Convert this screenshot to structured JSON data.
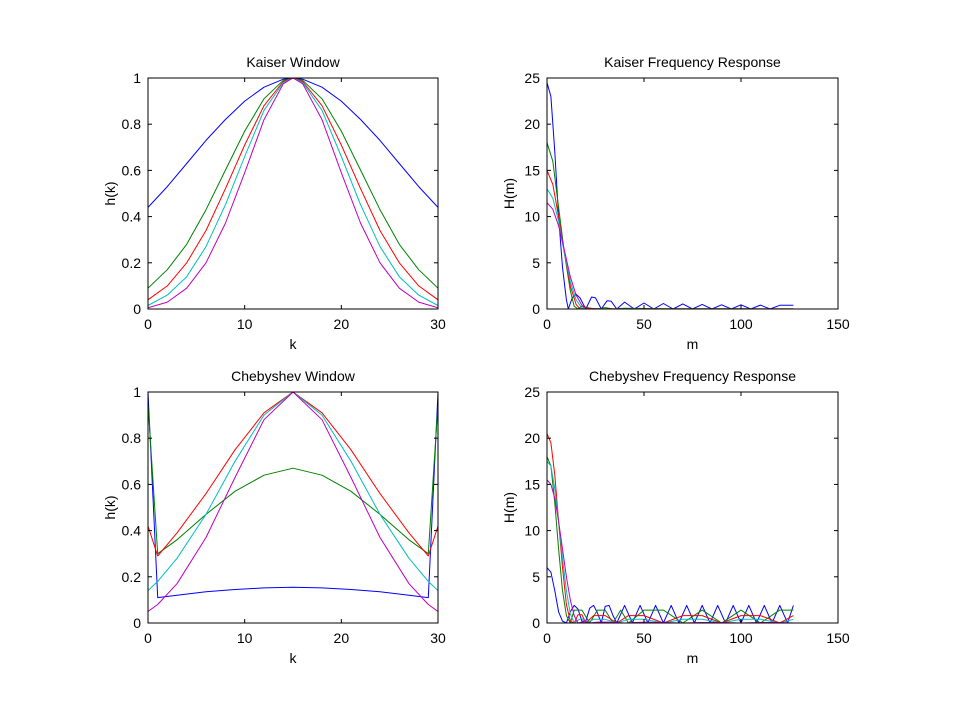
{
  "chart_data": [
    {
      "type": "line",
      "title": "Kaiser Window",
      "xlabel": "k",
      "ylabel": "h(k)",
      "xlim": [
        0,
        30
      ],
      "ylim": [
        0,
        1
      ],
      "xticks": [
        0,
        10,
        20,
        30
      ],
      "yticks": [
        0,
        0.2,
        0.4,
        0.6,
        0.8,
        1
      ],
      "grid": false,
      "legend": null,
      "series": [
        {
          "color": "#0000ff",
          "x": [
            0,
            2,
            4,
            6,
            8,
            10,
            12,
            14,
            15,
            16,
            18,
            20,
            22,
            24,
            26,
            28,
            30
          ],
          "y": [
            0.44,
            0.53,
            0.63,
            0.73,
            0.82,
            0.9,
            0.96,
            0.995,
            1,
            0.995,
            0.96,
            0.9,
            0.82,
            0.73,
            0.63,
            0.53,
            0.44
          ]
        },
        {
          "color": "#008000",
          "x": [
            0,
            2,
            4,
            6,
            8,
            10,
            12,
            14,
            15,
            16,
            18,
            20,
            22,
            24,
            26,
            28,
            30
          ],
          "y": [
            0.09,
            0.17,
            0.28,
            0.43,
            0.6,
            0.77,
            0.91,
            0.99,
            1,
            0.99,
            0.91,
            0.77,
            0.6,
            0.43,
            0.28,
            0.17,
            0.09
          ]
        },
        {
          "color": "#ff0000",
          "x": [
            0,
            2,
            4,
            6,
            8,
            10,
            12,
            14,
            15,
            16,
            18,
            20,
            22,
            24,
            26,
            28,
            30
          ],
          "y": [
            0.04,
            0.1,
            0.2,
            0.34,
            0.52,
            0.71,
            0.88,
            0.985,
            1,
            0.985,
            0.88,
            0.71,
            0.52,
            0.34,
            0.2,
            0.1,
            0.04
          ]
        },
        {
          "color": "#00bfbf",
          "x": [
            0,
            2,
            4,
            6,
            8,
            10,
            12,
            14,
            15,
            16,
            18,
            20,
            22,
            24,
            26,
            28,
            30
          ],
          "y": [
            0.015,
            0.06,
            0.14,
            0.27,
            0.45,
            0.66,
            0.86,
            0.98,
            1,
            0.98,
            0.86,
            0.66,
            0.45,
            0.27,
            0.14,
            0.06,
            0.015
          ]
        },
        {
          "color": "#bf00bf",
          "x": [
            0,
            2,
            4,
            6,
            8,
            10,
            12,
            14,
            15,
            16,
            18,
            20,
            22,
            24,
            26,
            28,
            30
          ],
          "y": [
            0.005,
            0.03,
            0.09,
            0.2,
            0.37,
            0.59,
            0.82,
            0.975,
            1,
            0.975,
            0.82,
            0.59,
            0.37,
            0.2,
            0.09,
            0.03,
            0.005
          ]
        }
      ]
    },
    {
      "type": "line",
      "title": "Kaiser Frequency Response",
      "xlabel": "m",
      "ylabel": "H(m)",
      "xlim": [
        0,
        150
      ],
      "ylim": [
        0,
        25
      ],
      "xticks": [
        0,
        50,
        100,
        150
      ],
      "yticks": [
        0,
        5,
        10,
        15,
        20,
        25
      ],
      "grid": false,
      "legend": null,
      "series": [
        {
          "color": "#0000ff",
          "x": [
            0,
            2,
            4,
            6,
            8,
            10,
            11,
            13,
            15,
            17,
            20,
            23,
            25,
            28,
            31,
            33,
            36,
            40,
            45,
            50,
            55,
            60,
            65,
            70,
            75,
            80,
            85,
            90,
            95,
            100,
            105,
            110,
            115,
            120,
            127
          ],
          "y": [
            24.5,
            23,
            17,
            10,
            4.5,
            1,
            0,
            1.2,
            1.6,
            1.2,
            0,
            1.3,
            1.2,
            0,
            0.9,
            0.85,
            0,
            0.75,
            0,
            0.65,
            0,
            0.6,
            0,
            0.55,
            0,
            0.5,
            0,
            0.45,
            0,
            0.45,
            0,
            0.42,
            0,
            0.4,
            0.4
          ]
        },
        {
          "color": "#008000",
          "x": [
            0,
            3,
            6,
            9,
            12,
            14,
            16,
            18,
            22,
            26,
            30,
            34,
            40,
            60,
            80,
            100,
            127
          ],
          "y": [
            18,
            16,
            11,
            6,
            2,
            0.3,
            0,
            0.3,
            0.1,
            0,
            0.15,
            0,
            0.08,
            0.03,
            0.02,
            0.02,
            0.01
          ]
        },
        {
          "color": "#ff0000",
          "x": [
            0,
            3,
            6,
            9,
            12,
            15,
            17,
            19,
            23,
            28,
            34,
            40,
            60,
            80,
            100,
            127
          ],
          "y": [
            15,
            13.5,
            10,
            6,
            2.5,
            0.5,
            0,
            0.15,
            0.05,
            0,
            0.03,
            0.01,
            0.01,
            0.01,
            0.01,
            0.01
          ]
        },
        {
          "color": "#00bfbf",
          "x": [
            0,
            3,
            6,
            9,
            12,
            15,
            18,
            20,
            25,
            30,
            40,
            60,
            80,
            100,
            127
          ],
          "y": [
            13,
            12,
            9.5,
            6,
            3,
            1,
            0.1,
            0,
            0.03,
            0,
            0.01,
            0,
            0,
            0,
            0
          ]
        },
        {
          "color": "#bf00bf",
          "x": [
            0,
            3,
            6,
            9,
            12,
            15,
            18,
            21,
            24,
            30,
            40,
            60,
            80,
            100,
            127
          ],
          "y": [
            11.5,
            10.8,
            9,
            6.3,
            3.5,
            1.5,
            0.4,
            0,
            0.02,
            0,
            0,
            0,
            0,
            0,
            0
          ]
        }
      ]
    },
    {
      "type": "line",
      "title": "Chebyshev Window",
      "xlabel": "k",
      "ylabel": "h(k)",
      "xlim": [
        0,
        30
      ],
      "ylim": [
        0,
        1
      ],
      "xticks": [
        0,
        10,
        20,
        30
      ],
      "yticks": [
        0,
        0.2,
        0.4,
        0.6,
        0.8,
        1
      ],
      "grid": false,
      "legend": null,
      "series": [
        {
          "color": "#0000ff",
          "x": [
            0,
            1,
            3,
            6,
            9,
            12,
            15,
            18,
            21,
            24,
            27,
            29,
            30
          ],
          "y": [
            1,
            0.11,
            0.12,
            0.135,
            0.145,
            0.152,
            0.155,
            0.152,
            0.145,
            0.135,
            0.12,
            0.11,
            1
          ]
        },
        {
          "color": "#008000",
          "x": [
            0,
            1,
            3,
            6,
            9,
            12,
            15,
            18,
            21,
            24,
            27,
            29,
            30
          ],
          "y": [
            0.95,
            0.3,
            0.36,
            0.47,
            0.57,
            0.64,
            0.67,
            0.64,
            0.57,
            0.47,
            0.36,
            0.3,
            0.95
          ]
        },
        {
          "color": "#ff0000",
          "x": [
            0,
            1,
            3,
            6,
            9,
            12,
            15,
            18,
            21,
            24,
            27,
            29,
            30
          ],
          "y": [
            0.42,
            0.29,
            0.39,
            0.56,
            0.75,
            0.91,
            1,
            0.91,
            0.75,
            0.56,
            0.39,
            0.29,
            0.42
          ]
        },
        {
          "color": "#00bfbf",
          "x": [
            0,
            1,
            3,
            6,
            9,
            12,
            15,
            18,
            21,
            24,
            27,
            29,
            30
          ],
          "y": [
            0.14,
            0.18,
            0.28,
            0.47,
            0.7,
            0.9,
            1,
            0.9,
            0.7,
            0.47,
            0.28,
            0.18,
            0.14
          ]
        },
        {
          "color": "#bf00bf",
          "x": [
            0,
            1,
            3,
            6,
            9,
            12,
            15,
            18,
            21,
            24,
            27,
            29,
            30
          ],
          "y": [
            0.05,
            0.08,
            0.17,
            0.37,
            0.63,
            0.88,
            1,
            0.88,
            0.63,
            0.37,
            0.17,
            0.08,
            0.05
          ]
        }
      ]
    },
    {
      "type": "line",
      "title": "Chebyshev Frequency Response",
      "xlabel": "m",
      "ylabel": "H(m)",
      "xlim": [
        0,
        150
      ],
      "ylim": [
        0,
        25
      ],
      "xticks": [
        0,
        50,
        100,
        150
      ],
      "yticks": [
        0,
        5,
        10,
        15,
        20,
        25
      ],
      "grid": false,
      "legend": null,
      "series": [
        {
          "color": "#0000ff",
          "x": [
            0,
            2,
            4,
            6,
            8,
            10,
            12,
            14,
            16,
            18,
            20,
            22,
            24,
            26,
            28,
            30,
            32,
            34,
            36,
            40,
            44,
            48,
            52,
            56,
            60,
            64,
            68,
            72,
            76,
            80,
            84,
            88,
            92,
            96,
            100,
            104,
            108,
            112,
            116,
            120,
            124,
            127
          ],
          "y": [
            6,
            5.5,
            3.5,
            1.2,
            0.2,
            0,
            1.2,
            1.9,
            1.5,
            0.2,
            0.2,
            1.6,
            1.9,
            1.1,
            0,
            1.8,
            1.9,
            0.8,
            0,
            1.9,
            0,
            1.9,
            0,
            1.9,
            0,
            1.9,
            0,
            1.9,
            0,
            1.9,
            0,
            1.9,
            0,
            1.9,
            0,
            1.9,
            0,
            1.9,
            0,
            1.9,
            0,
            1.9
          ]
        },
        {
          "color": "#008000",
          "x": [
            0,
            2,
            4,
            6,
            8,
            10,
            12,
            14,
            18,
            22,
            26,
            30,
            34,
            38,
            42,
            50,
            60,
            70,
            80,
            90,
            100,
            110,
            120,
            127
          ],
          "y": [
            18,
            17,
            13,
            8,
            3.5,
            0.8,
            0,
            1.4,
            1.4,
            0,
            1.4,
            1.4,
            0,
            1.4,
            0,
            1.4,
            1.4,
            0,
            1.4,
            0,
            1.4,
            0,
            1.4,
            1.4
          ]
        },
        {
          "color": "#ff0000",
          "x": [
            0,
            2,
            4,
            6,
            8,
            10,
            12,
            14,
            16,
            18,
            20,
            24,
            30,
            36,
            42,
            50,
            60,
            70,
            80,
            90,
            100,
            110,
            120,
            127
          ],
          "y": [
            20.5,
            19.5,
            16,
            11,
            6,
            2,
            0.2,
            0,
            0.9,
            0.9,
            0,
            0.8,
            0.8,
            0,
            0.8,
            0.8,
            0,
            0.8,
            0.8,
            0,
            0.8,
            0.8,
            0,
            0.8
          ]
        },
        {
          "color": "#00bfbf",
          "x": [
            0,
            2,
            4,
            6,
            8,
            10,
            12,
            14,
            16,
            18,
            20,
            24,
            30,
            36,
            42,
            50,
            60,
            70,
            80,
            90,
            100,
            110,
            120,
            127
          ],
          "y": [
            17.5,
            17,
            14.5,
            11,
            7,
            3.5,
            1,
            0,
            0.3,
            0.5,
            0,
            0.4,
            0.4,
            0,
            0.4,
            0.4,
            0,
            0.4,
            0.4,
            0,
            0.4,
            0.4,
            0,
            0.4
          ]
        },
        {
          "color": "#bf00bf",
          "x": [
            0,
            2,
            4,
            6,
            8,
            10,
            12,
            14,
            16,
            18,
            20,
            22,
            26,
            32,
            40,
            50,
            60,
            70,
            80,
            90,
            100,
            110,
            120,
            127
          ],
          "y": [
            15.5,
            15,
            13.5,
            11,
            8,
            5,
            2.5,
            0.8,
            0,
            0.1,
            0.15,
            0,
            0.1,
            0.1,
            0,
            0.1,
            0.05,
            0,
            0.05,
            0.05,
            0,
            0.05,
            0.05,
            0
          ]
        }
      ]
    }
  ]
}
